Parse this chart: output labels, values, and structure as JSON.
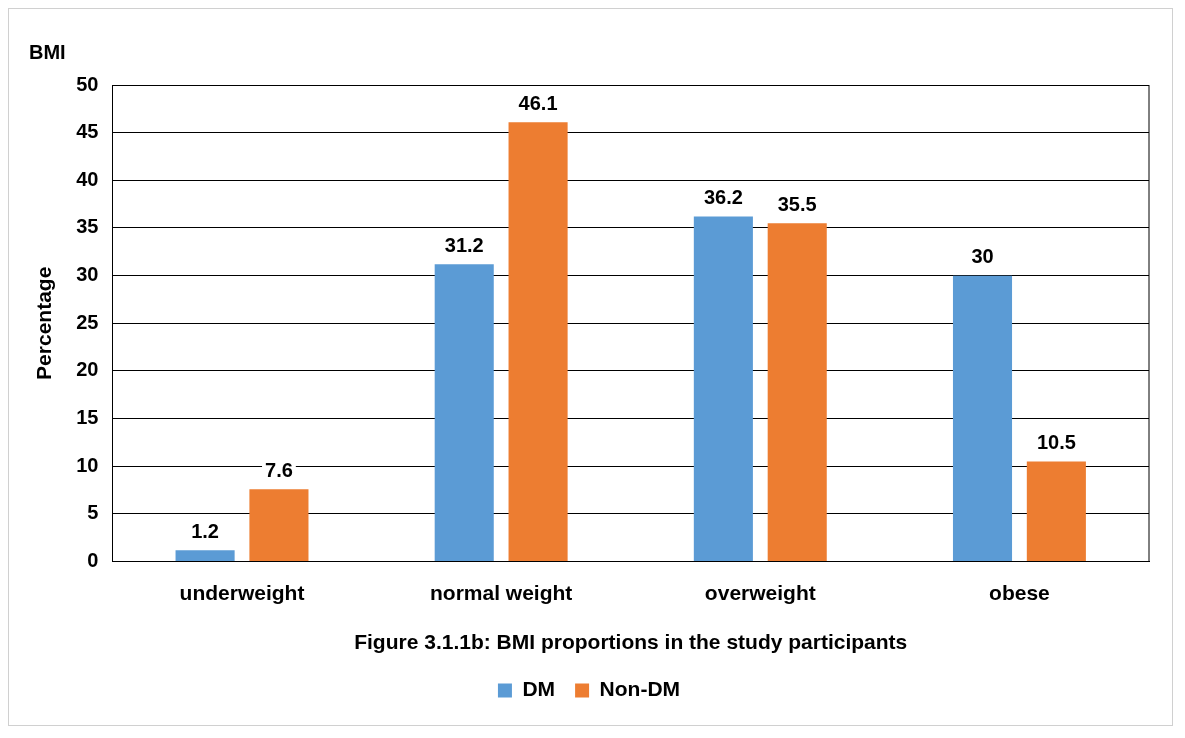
{
  "chart_data": {
    "type": "bar",
    "title": "BMI",
    "ylabel": "Percentage",
    "xlabel": "Figure 3.1.1b: BMI proportions in the study participants",
    "categories": [
      "underweight",
      "normal weight",
      "overweight",
      "obese"
    ],
    "series": [
      {
        "name": "DM",
        "color": "#5b9bd5",
        "values": [
          1.2,
          31.2,
          36.2,
          30
        ]
      },
      {
        "name": "Non-DM",
        "color": "#ed7d31",
        "values": [
          7.6,
          46.1,
          35.5,
          10.5
        ]
      }
    ],
    "ylim": [
      0,
      50
    ],
    "yticks": [
      0,
      5,
      10,
      15,
      20,
      25,
      30,
      35,
      40,
      45,
      50
    ],
    "grid": "y",
    "legend": "bottom",
    "data_labels": true
  }
}
